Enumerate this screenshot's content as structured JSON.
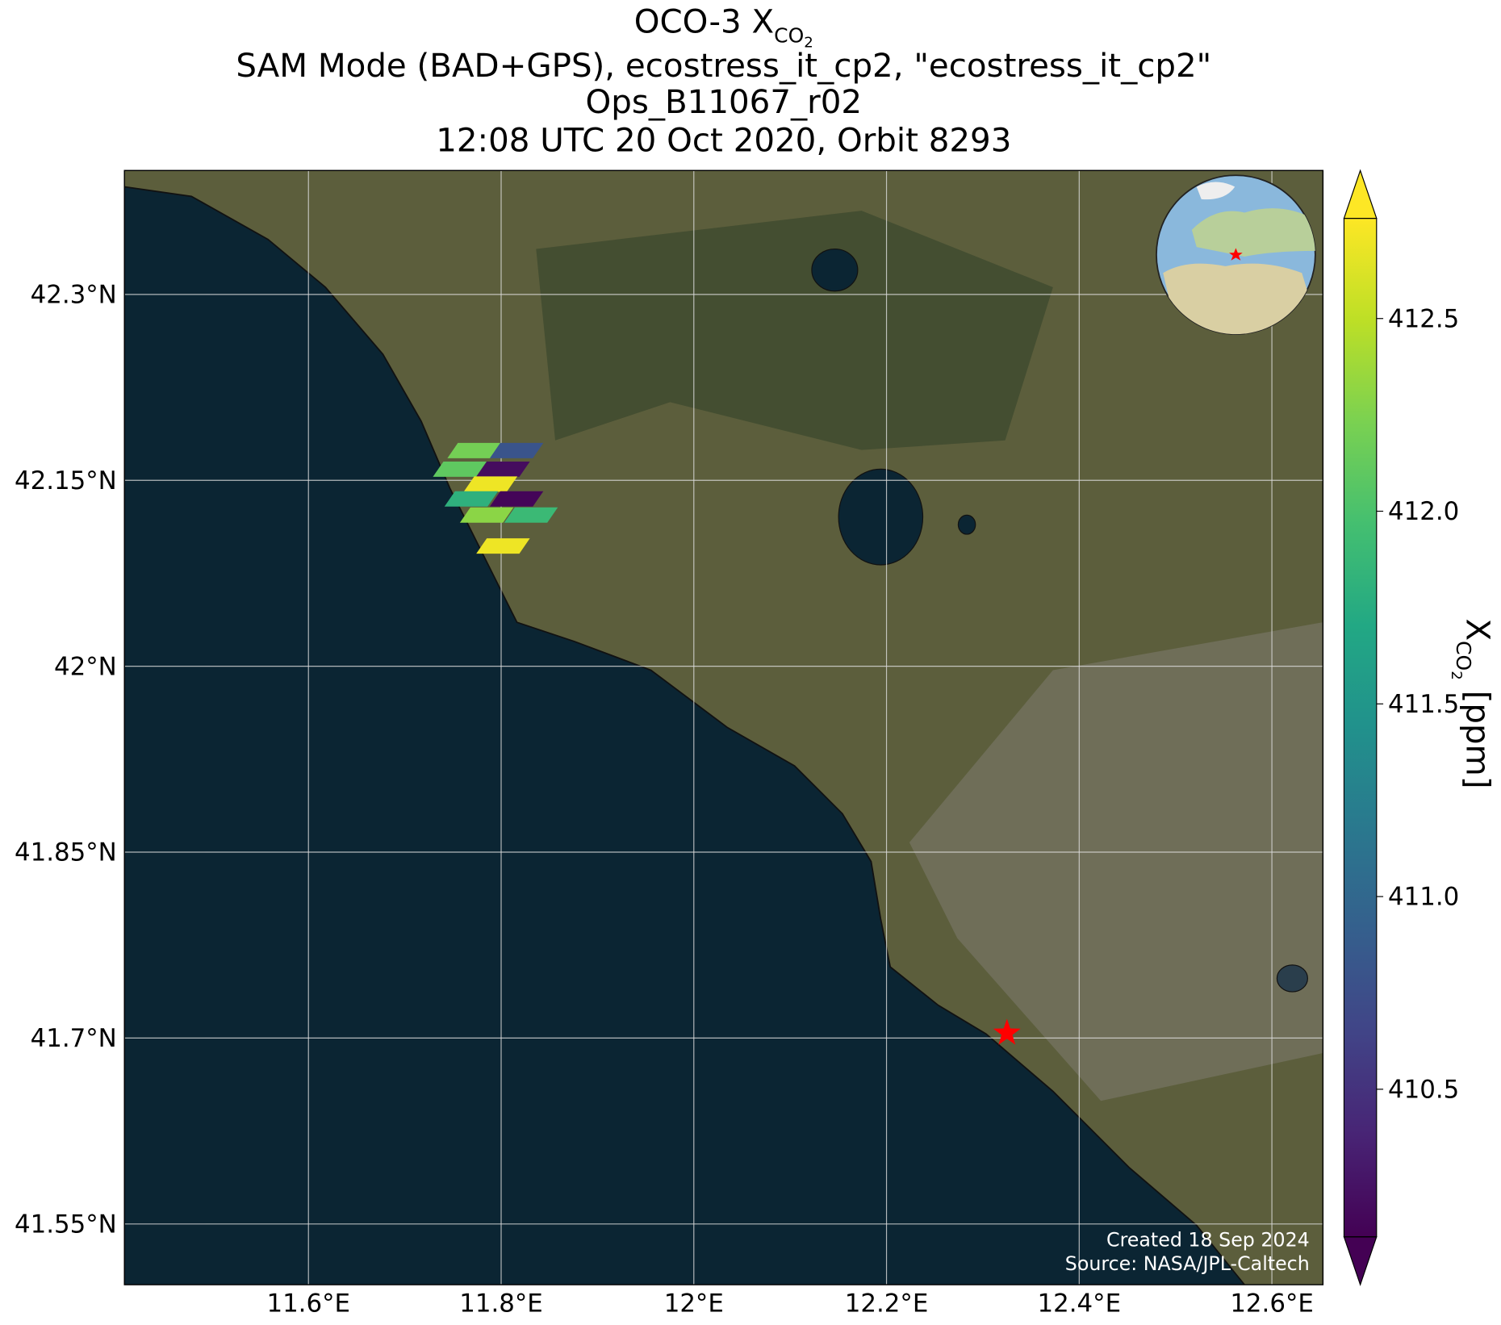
{
  "chart_data": {
    "type": "map",
    "title": [
      {
        "text": "OCO-3 X",
        "subscript": "CO",
        "subsubscript": "2"
      },
      {
        "text": "SAM Mode (BAD+GPS), ecostress_it_cp2, \"ecostress_it_cp2\""
      },
      {
        "text": "Ops_B11067_r02"
      },
      {
        "text": "12:08 UTC 20 Oct 2020, Orbit 8293"
      }
    ],
    "xlim": [
      11.409,
      12.653
    ],
    "ylim": [
      41.501,
      42.4
    ],
    "xticks": [
      {
        "value": 11.6,
        "label": "11.6°E"
      },
      {
        "value": 11.8,
        "label": "11.8°E"
      },
      {
        "value": 12,
        "label": "12°E"
      },
      {
        "value": 12.2,
        "label": "12.2°E"
      },
      {
        "value": 12.4,
        "label": "12.4°E"
      },
      {
        "value": 12.6,
        "label": "12.6°E"
      }
    ],
    "yticks": [
      {
        "value": 42.3,
        "label": "42.3°N"
      },
      {
        "value": 42.15,
        "label": "42.15°N"
      },
      {
        "value": 42,
        "label": "42°N"
      },
      {
        "value": 41.85,
        "label": "41.85°N"
      },
      {
        "value": 41.7,
        "label": "41.7°N"
      },
      {
        "value": 41.55,
        "label": "41.55°N"
      }
    ],
    "grid": true,
    "colormap": "viridis",
    "clim": [
      410.117,
      412.76
    ],
    "cticks": [
      410.5,
      {
        "value": 411,
        "label": "411.0"
      },
      411.5,
      {
        "value": 412,
        "label": "412.0"
      },
      412.5
    ],
    "colorbar_label": {
      "text": "X",
      "subscript": "CO",
      "subsubscript": "2",
      "suffix": " [ppm]"
    },
    "soundings": {
      "lon": [
        11.772,
        11.816,
        11.757,
        11.802,
        11.789,
        11.769,
        11.816,
        11.785,
        11.831,
        11.802
      ],
      "lat": [
        42.174,
        42.174,
        42.159,
        42.159,
        42.147,
        42.135,
        42.135,
        42.122,
        42.122,
        42.097
      ],
      "values": [
        412.2,
        410.8,
        412.1,
        410.2,
        412.7,
        411.8,
        410.15,
        412.3,
        411.9,
        412.7
      ]
    },
    "target": {
      "lon": 12.325,
      "lat": 41.704,
      "color": "#ff0000"
    },
    "credits": [
      "Created 18 Sep 2024",
      "Source: NASA/JPL-Caltech"
    ]
  }
}
